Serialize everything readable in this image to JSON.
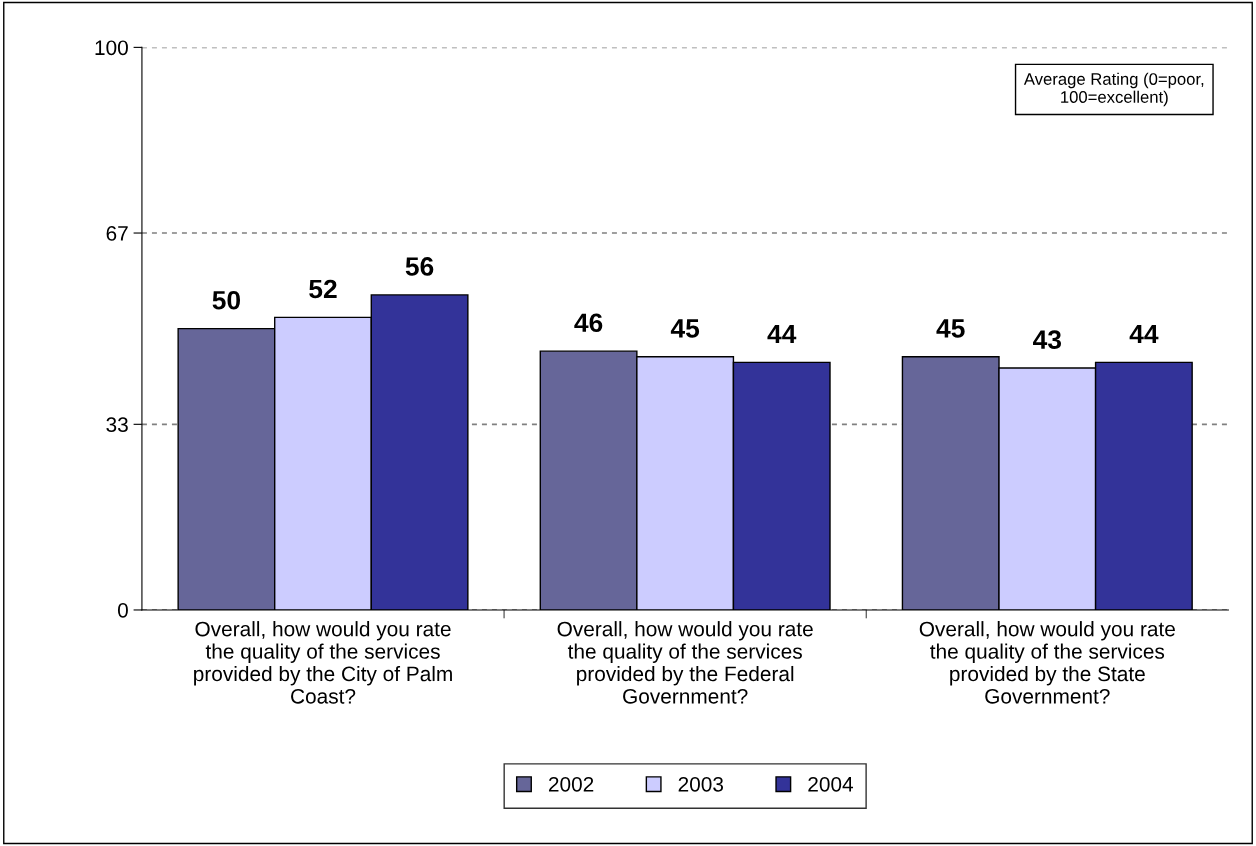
{
  "chart_data": {
    "type": "bar",
    "categories": [
      "Overall, how would you rate\nthe quality of the services\nprovided by the City of Palm\nCoast?",
      "Overall, how would you rate\nthe quality of the services\nprovided by the Federal\nGovernment?",
      "Overall, how would you rate\nthe quality of the services\nprovided by the State\nGovernment?"
    ],
    "series": [
      {
        "name": "2002",
        "color": "#666699",
        "values": [
          50,
          46,
          45
        ]
      },
      {
        "name": "2003",
        "color": "#ccccff",
        "values": [
          52,
          45,
          43
        ]
      },
      {
        "name": "2004",
        "color": "#333399",
        "values": [
          56,
          44,
          44
        ]
      }
    ],
    "ylim": [
      0,
      100
    ],
    "yticks": [
      0,
      33,
      67,
      100
    ],
    "grid": "y",
    "data_labels": true,
    "legend": "bottom",
    "annotations": [
      "Average Rating (0=poor,\n100=excellent)"
    ]
  }
}
